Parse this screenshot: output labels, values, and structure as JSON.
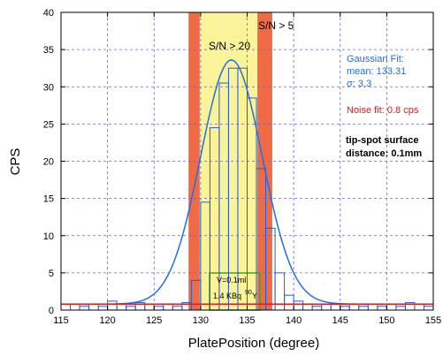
{
  "chart_data": {
    "type": "histogram",
    "xlabel": "PlatePosition (degree)",
    "ylabel": "CPS",
    "xlim": [
      115,
      155
    ],
    "ylim": [
      0,
      40
    ],
    "x_ticks": [
      115,
      120,
      125,
      130,
      135,
      140,
      145,
      150,
      155
    ],
    "y_ticks": [
      0,
      5,
      10,
      15,
      20,
      25,
      30,
      35,
      40
    ],
    "grid": true,
    "colors": {
      "histogram": "#1f5fd0",
      "gaussian": "#1f6fe6",
      "noise": "#e11b1b",
      "grid": "#6666cc"
    },
    "bands": [
      {
        "label": "S/N > 5",
        "range": [
          128.7,
          137.7
        ],
        "color": "#f06a45"
      },
      {
        "label": "S/N > 20",
        "range": [
          129.9,
          136.1
        ],
        "color": "#fbf39a"
      }
    ],
    "histogram": {
      "x": [
        115,
        116,
        117,
        118,
        119,
        120,
        121,
        122,
        123,
        124,
        125,
        126,
        127,
        128,
        129,
        130,
        131,
        132,
        133,
        134,
        135,
        136,
        137,
        138,
        139,
        140,
        141,
        142,
        143,
        144,
        145,
        146,
        147,
        148,
        149,
        150,
        151,
        152,
        153,
        154
      ],
      "values": [
        0.8,
        0.8,
        0.5,
        0.8,
        0.5,
        1.2,
        0.8,
        0.5,
        1.0,
        0.8,
        0.5,
        0.8,
        0.5,
        1.0,
        4.0,
        14.5,
        24.5,
        30.5,
        32.5,
        32.5,
        28.5,
        19.0,
        11.0,
        5.0,
        2.0,
        1.2,
        0.8,
        0.5,
        0.8,
        0.8,
        0.5,
        0.8,
        0.5,
        0.8,
        0.5,
        0.8,
        0.5,
        1.0,
        0.8,
        0.5
      ]
    },
    "gaussian_fit": {
      "label": "Gaussian Fit:",
      "mean_text": "mean: 133.31",
      "sigma_text": "σ: 3.3",
      "mean": 133.31,
      "sigma": 3.3,
      "amplitude": 32.8,
      "baseline": 0.8
    },
    "noise_fit": {
      "label": "Noise fit: 0.8 cps",
      "level": 0.8
    },
    "annotations": {
      "tip_spot_line1": "tip-spot surface",
      "tip_spot_line2": "distance: 0.1mm",
      "sample_v": "V=0.1ml",
      "sample_activity": "1.4 KBq",
      "sample_isotope_sup": "90",
      "sample_isotope": "Y"
    }
  }
}
